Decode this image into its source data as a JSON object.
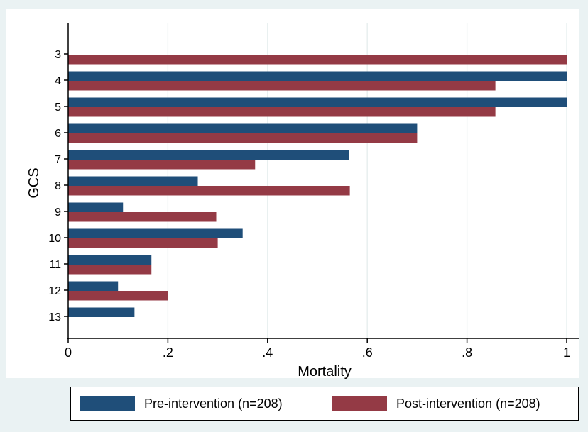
{
  "chart_data": {
    "type": "bar",
    "orientation": "horizontal",
    "xlabel": "Mortality",
    "ylabel": "GCS",
    "xlim": [
      0,
      1
    ],
    "xticks": [
      "0",
      ".2",
      ".4",
      ".6",
      ".8",
      "1"
    ],
    "xtick_values": [
      0,
      0.2,
      0.4,
      0.6,
      0.8,
      1
    ],
    "grid": true,
    "legend_position": "bottom",
    "categories": [
      "3",
      "4",
      "5",
      "6",
      "7",
      "8",
      "9",
      "10",
      "11",
      "12",
      "13"
    ],
    "series": [
      {
        "name": "Pre-intervention (n=208)",
        "color": "#1f4e79",
        "values": [
          null,
          1.0,
          1.0,
          0.7,
          0.563,
          0.26,
          0.11,
          0.35,
          0.167,
          0.1,
          0.133
        ]
      },
      {
        "name": "Post-intervention (n=208)",
        "color": "#943a45",
        "values": [
          1.0,
          0.857,
          0.857,
          0.7,
          0.375,
          0.565,
          0.297,
          0.3,
          0.167,
          0.2,
          null
        ]
      }
    ]
  },
  "colors": {
    "background": "#eaf2f3",
    "plot_background": "#ffffff",
    "gridline": "#e5eded"
  }
}
